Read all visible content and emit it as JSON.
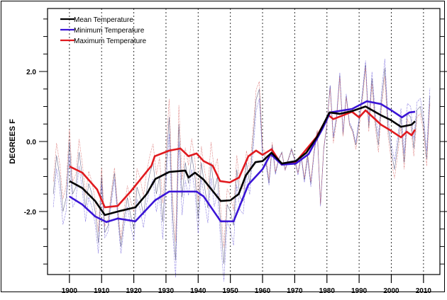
{
  "chart_data": {
    "type": "line",
    "title": "",
    "xlabel": "",
    "ylabel": "DEGREES F",
    "xlim": [
      1893.2,
      2015.1
    ],
    "ylim": [
      -3.8,
      3.8
    ],
    "x_ticks": [
      1900,
      1910,
      1920,
      1930,
      1940,
      1950,
      1960,
      1970,
      1980,
      1990,
      2000,
      2010
    ],
    "x_tick_labels": [
      "1900",
      "1910",
      "1920",
      "1930",
      "1940",
      "1950",
      "1960",
      "1970",
      "1980",
      "1990",
      "2000",
      "2010"
    ],
    "y_ticks": [
      -2.0,
      0.0,
      2.0
    ],
    "y_tick_labels": [
      "-2.0",
      "0.0",
      "2.0"
    ],
    "y_minor_step": 0.5,
    "grid": "vertical dashed at each decade",
    "legend_placement": "top-left",
    "series": [
      {
        "name": "Mean Temperature",
        "color": "#000000",
        "smoothed": [
          [
            1900,
            -1.13
          ],
          [
            1904,
            -1.33
          ],
          [
            1908,
            -1.7
          ],
          [
            1911,
            -2.1
          ],
          [
            1915,
            -2.0
          ],
          [
            1920.5,
            -1.88
          ],
          [
            1924,
            -1.5
          ],
          [
            1926.7,
            -1.07
          ],
          [
            1931,
            -0.87
          ],
          [
            1936,
            -0.83
          ],
          [
            1937,
            -1.03
          ],
          [
            1939,
            -0.89
          ],
          [
            1941.7,
            -1.09
          ],
          [
            1947,
            -1.7
          ],
          [
            1950,
            -1.68
          ],
          [
            1952.6,
            -1.5
          ],
          [
            1954.8,
            -0.97
          ],
          [
            1957.8,
            -0.59
          ],
          [
            1960,
            -0.56
          ],
          [
            1962.8,
            -0.32
          ],
          [
            1966,
            -0.63
          ],
          [
            1970.3,
            -0.56
          ],
          [
            1973.6,
            -0.32
          ],
          [
            1977,
            0.14
          ],
          [
            1980.8,
            0.83
          ],
          [
            1984,
            0.79
          ],
          [
            1987.8,
            0.87
          ],
          [
            1992,
            1.0
          ],
          [
            1996.8,
            0.75
          ],
          [
            1999.7,
            0.62
          ],
          [
            2003,
            0.42
          ],
          [
            2006.3,
            0.48
          ],
          [
            2007.4,
            0.58
          ]
        ],
        "annual_start_year": 1895,
        "annual": [
          -1.5,
          -0.4,
          -1.0,
          -2.0,
          -1.6,
          0.0,
          -1.5,
          -1.3,
          -0.3,
          -1.0,
          -1.9,
          -1.2,
          -1.5,
          -2.0,
          -2.9,
          -1.0,
          -2.6,
          -2.4,
          -1.6,
          -0.9,
          -2.0,
          -3.0,
          -2.2,
          -1.6,
          -2.1,
          -2.5,
          -1.3,
          -1.6,
          -2.1,
          -1.4,
          -0.9,
          -0.6,
          -1.5,
          -1.0,
          -2.3,
          -0.8,
          0.7,
          -2.0,
          -3.4,
          0.5,
          -1.6,
          -0.6,
          -1.2,
          -0.4,
          -1.0,
          -2.2,
          -0.6,
          -1.3,
          -1.9,
          -0.6,
          -1.4,
          -1.0,
          -2.4,
          -3.5,
          -1.8,
          -2.0,
          -2.4,
          -0.8,
          -1.6,
          -1.7,
          -0.6,
          -1.2,
          0.0,
          1.2,
          1.5,
          -0.3,
          -0.5,
          -1.2,
          -0.1,
          -0.9,
          -0.5,
          -0.3,
          -0.8,
          -0.5,
          -0.2,
          -0.5,
          -0.9,
          -0.4,
          -1.1,
          -0.4,
          -1.2,
          -0.3,
          0.3,
          -1.8,
          -0.2,
          0.5,
          1.6,
          0.1,
          0.7,
          1.9,
          0.2,
          1.3,
          0.5,
          0.3,
          -0.1,
          0.6,
          1.3,
          2.2,
          0.4,
          1.8,
          0.6,
          -0.1,
          1.2,
          2.1,
          0.4,
          -0.3,
          -0.8,
          -0.1,
          0.7,
          -0.6,
          0.8,
          0.7,
          -0.2,
          0.9,
          1.0,
          0.5,
          -0.5,
          1.3
        ]
      },
      {
        "name": "Minimum Temperature",
        "color": "#3a14d6",
        "smoothed": [
          [
            1900,
            -1.57
          ],
          [
            1904,
            -1.8
          ],
          [
            1908,
            -2.14
          ],
          [
            1911.5,
            -2.3
          ],
          [
            1915,
            -2.2
          ],
          [
            1920.5,
            -2.28
          ],
          [
            1926.6,
            -1.68
          ],
          [
            1931,
            -1.43
          ],
          [
            1936.5,
            -1.43
          ],
          [
            1939.5,
            -1.43
          ],
          [
            1941.7,
            -1.57
          ],
          [
            1947,
            -2.28
          ],
          [
            1951,
            -2.28
          ],
          [
            1955.6,
            -1.23
          ],
          [
            1960,
            -0.79
          ],
          [
            1962.5,
            -0.36
          ],
          [
            1966,
            -0.66
          ],
          [
            1970.3,
            -0.63
          ],
          [
            1974.3,
            -0.36
          ],
          [
            1978.7,
            0.38
          ],
          [
            1981,
            0.83
          ],
          [
            1987.8,
            0.93
          ],
          [
            1992.4,
            1.15
          ],
          [
            1996.8,
            1.07
          ],
          [
            1999.7,
            0.91
          ],
          [
            2003.3,
            0.69
          ],
          [
            2005.6,
            0.83
          ],
          [
            2007.4,
            0.85
          ]
        ]
      },
      {
        "name": "Maximum Temperature",
        "color": "#e0191e",
        "smoothed": [
          [
            1900,
            -0.71
          ],
          [
            1904,
            -0.89
          ],
          [
            1908.6,
            -1.37
          ],
          [
            1911,
            -1.88
          ],
          [
            1915,
            -1.84
          ],
          [
            1919,
            -1.43
          ],
          [
            1925.5,
            -0.69
          ],
          [
            1926.5,
            -0.42
          ],
          [
            1931,
            -0.26
          ],
          [
            1934.5,
            -0.2
          ],
          [
            1937,
            -0.42
          ],
          [
            1939.5,
            -0.34
          ],
          [
            1941.7,
            -0.56
          ],
          [
            1944.5,
            -0.69
          ],
          [
            1946.8,
            -1.13
          ],
          [
            1949.8,
            -1.17
          ],
          [
            1952.7,
            -1.03
          ],
          [
            1955.6,
            -0.42
          ],
          [
            1958,
            -0.26
          ],
          [
            1960,
            -0.38
          ],
          [
            1962.8,
            -0.22
          ],
          [
            1965.9,
            -0.66
          ],
          [
            1970.3,
            -0.59
          ],
          [
            1973,
            -0.29
          ],
          [
            1976.7,
            0.12
          ],
          [
            1980.5,
            0.75
          ],
          [
            1982,
            0.64
          ],
          [
            1987.8,
            0.85
          ],
          [
            1990,
            0.69
          ],
          [
            1992,
            0.89
          ],
          [
            1996.8,
            0.48
          ],
          [
            1999.7,
            0.32
          ],
          [
            2003,
            0.12
          ],
          [
            2004.8,
            0.28
          ],
          [
            2006.3,
            0.18
          ],
          [
            2007.4,
            0.34
          ]
        ]
      }
    ]
  }
}
